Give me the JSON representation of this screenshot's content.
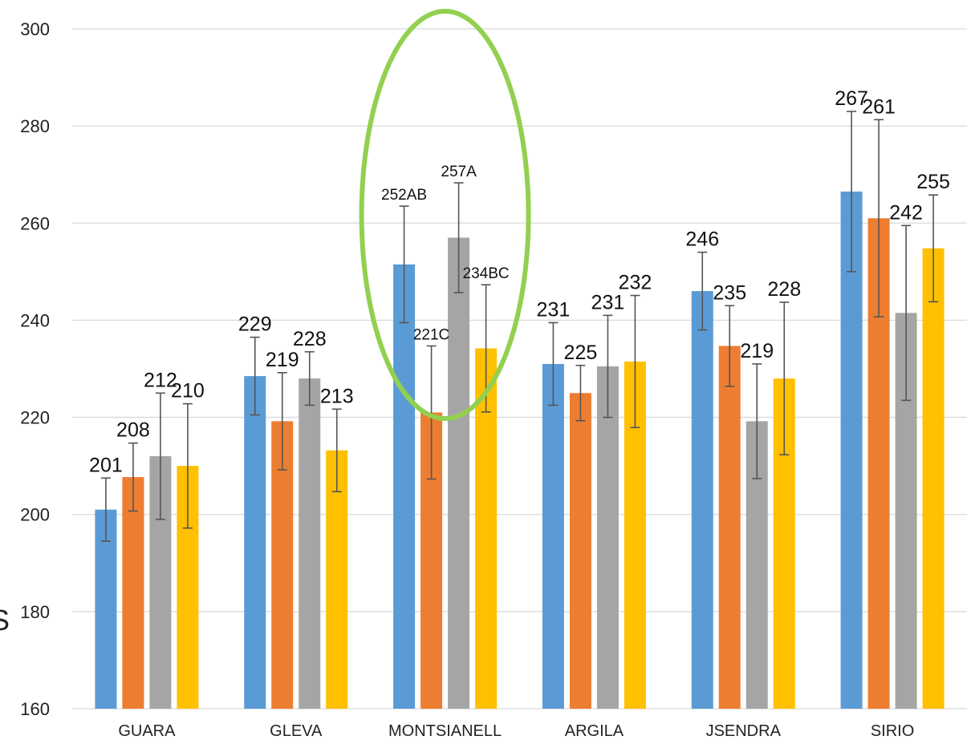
{
  "chart_data": {
    "type": "bar",
    "categories": [
      "GUARA",
      "GLEVA",
      "MONTSIANELL",
      "ARGILA",
      "JSENDRA",
      "SIRIO"
    ],
    "series": [
      {
        "color": "#5b9bd5",
        "values": [
          201,
          228.5,
          251.5,
          231,
          246,
          266.5
        ],
        "errors": [
          6.5,
          8,
          12,
          8.5,
          8,
          16.5
        ],
        "labels": [
          "201",
          "229",
          "252AB",
          "231",
          "246",
          "267"
        ]
      },
      {
        "color": "#ed7d31",
        "values": [
          207.7,
          219.2,
          221,
          225,
          234.7,
          261
        ],
        "errors": [
          7,
          10,
          13.7,
          5.7,
          8.3,
          20.3
        ],
        "labels": [
          "208",
          "219",
          "221C",
          "225",
          "235",
          "261"
        ]
      },
      {
        "color": "#a5a5a5",
        "values": [
          212,
          228,
          257,
          230.5,
          219.2,
          241.5
        ],
        "errors": [
          13,
          5.5,
          11.3,
          10.5,
          11.8,
          18
        ],
        "labels": [
          "212",
          "228",
          "257A",
          "231",
          "219",
          "242"
        ]
      },
      {
        "color": "#ffc000",
        "values": [
          210,
          213.2,
          234.2,
          231.5,
          228,
          254.8
        ],
        "errors": [
          12.8,
          8.5,
          13.1,
          13.6,
          15.7,
          11
        ],
        "labels": [
          "210",
          "213",
          "234BC",
          "232",
          "228",
          "255"
        ]
      }
    ],
    "ylim": [
      160,
      300
    ],
    "yticks": [
      160,
      180,
      200,
      220,
      240,
      260,
      280,
      300
    ],
    "grid": true,
    "legend": "none",
    "annotation": {
      "type": "ellipse",
      "highlights": "MONTSIANELL",
      "color": "#92d050"
    },
    "partial_text": "S"
  }
}
